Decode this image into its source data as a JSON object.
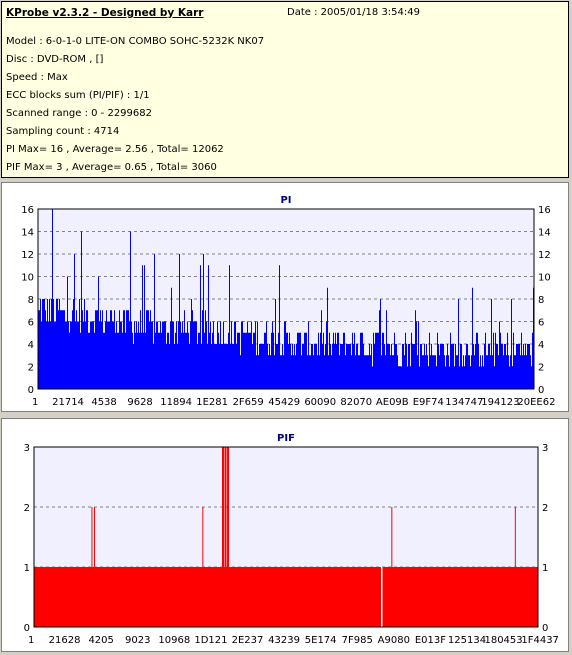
{
  "header": {
    "title": "KProbe v2.3.2 - Designed by Karr",
    "date": "Date : 2005/01/18 3:54:49"
  },
  "info_lines": [
    "Model : 6-0-1-0 LITE-ON COMBO SOHC-5232K NK07",
    "Disc : DVD-ROM ,  []",
    "Speed : Max",
    "ECC blocks sum (PI/PIF) : 1/1",
    "Scanned range : 0 - 2299682",
    "Sampling count : 4714",
    "PI Max= 16 , Average= 2.56 , Total= 12062",
    "PIF Max= 3 , Average= 0.65 , Total= 3060"
  ],
  "colors": {
    "pi": "#0000ff",
    "pif": "#ff0000",
    "plot_bg": "#f0f0ff",
    "info_bg": "#ffffe1"
  },
  "chart_data": [
    {
      "type": "bar",
      "title": "PI",
      "ylim": [
        0,
        16
      ],
      "yticks": [
        0,
        2,
        4,
        6,
        8,
        10,
        12,
        14,
        16
      ],
      "x_tick_labels": [
        "1",
        "21714",
        "4538",
        "9628",
        "11894",
        "1E281",
        "2F659",
        "45429",
        "60090",
        "82070",
        "AE09B",
        "E9F74",
        "134747",
        "194123",
        "20EE62"
      ],
      "grid": true,
      "description_segments": [
        {
          "range": [
            0,
            0.25
          ],
          "typical": 7,
          "peaks": [
            16,
            14,
            13,
            12
          ]
        },
        {
          "range": [
            0.25,
            0.5
          ],
          "typical": 5,
          "peaks": [
            11,
            9,
            8
          ]
        },
        {
          "range": [
            0.5,
            0.75
          ],
          "typical": 4,
          "peaks": [
            8,
            7,
            6
          ]
        },
        {
          "range": [
            0.75,
            1.0
          ],
          "typical": 3,
          "peaks": [
            8,
            7,
            6
          ]
        }
      ]
    },
    {
      "type": "bar",
      "title": "PIF",
      "ylim": [
        0,
        3
      ],
      "yticks": [
        0,
        1,
        2,
        3
      ],
      "x_tick_labels": [
        "1",
        "21628",
        "4205",
        "9023",
        "10968",
        "1D121",
        "2E237",
        "43239",
        "5E174",
        "7F985",
        "A9080",
        "E013F",
        "125134",
        "180453",
        "1F4437"
      ],
      "grid": true,
      "baseline_value": 1,
      "spikes": [
        {
          "x_frac": 0.115,
          "value": 2
        },
        {
          "x_frac": 0.12,
          "value": 2
        },
        {
          "x_frac": 0.335,
          "value": 2
        },
        {
          "x_frac": 0.375,
          "value": 3
        },
        {
          "x_frac": 0.38,
          "value": 3
        },
        {
          "x_frac": 0.385,
          "value": 3
        },
        {
          "x_frac": 0.71,
          "value": 2
        },
        {
          "x_frac": 0.955,
          "value": 2
        }
      ],
      "gaps": [
        0.69
      ]
    }
  ]
}
